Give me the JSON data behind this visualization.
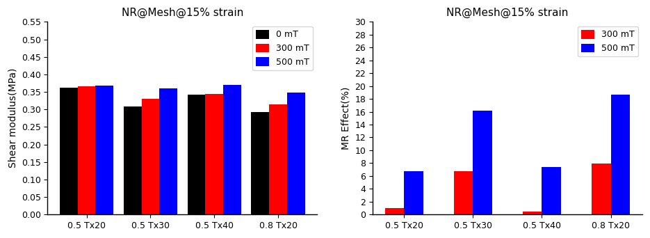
{
  "left_chart": {
    "title": "NR@Mesh@15% strain",
    "categories": [
      "0.5 Tx20",
      "0.5 Tx30",
      "0.5 Tx40",
      "0.8 Tx20"
    ],
    "series": {
      "0 mT": [
        0.363,
        0.308,
        0.343,
        0.293
      ],
      "300 mT": [
        0.367,
        0.33,
        0.345,
        0.314
      ],
      "500 mT": [
        0.368,
        0.36,
        0.37,
        0.348
      ]
    },
    "colors": {
      "0 mT": "#000000",
      "300 mT": "#ff0000",
      "500 mT": "#0000ff"
    },
    "ylabel": "Shear modulus(MPa)",
    "ylim": [
      0.0,
      0.55
    ],
    "yticks": [
      0.0,
      0.05,
      0.1,
      0.15,
      0.2,
      0.25,
      0.3,
      0.35,
      0.4,
      0.45,
      0.5,
      0.55
    ]
  },
  "right_chart": {
    "title": "NR@Mesh@15% strain",
    "categories": [
      "0.5 Tx20",
      "0.5 Tx30",
      "0.5 Tx40",
      "0.8 Tx20"
    ],
    "series": {
      "300 mT": [
        1.0,
        6.7,
        0.4,
        7.9
      ],
      "500 mT": [
        6.7,
        16.2,
        7.4,
        18.7
      ]
    },
    "colors": {
      "300 mT": "#ff0000",
      "500 mT": "#0000ff"
    },
    "ylabel": "MR Effect(%)",
    "ylim": [
      0,
      30
    ],
    "yticks": [
      0,
      2,
      4,
      6,
      8,
      10,
      12,
      14,
      16,
      18,
      20,
      22,
      24,
      26,
      28,
      30
    ]
  },
  "bar_width": 0.28,
  "figsize": [
    9.35,
    3.42
  ],
  "dpi": 100
}
